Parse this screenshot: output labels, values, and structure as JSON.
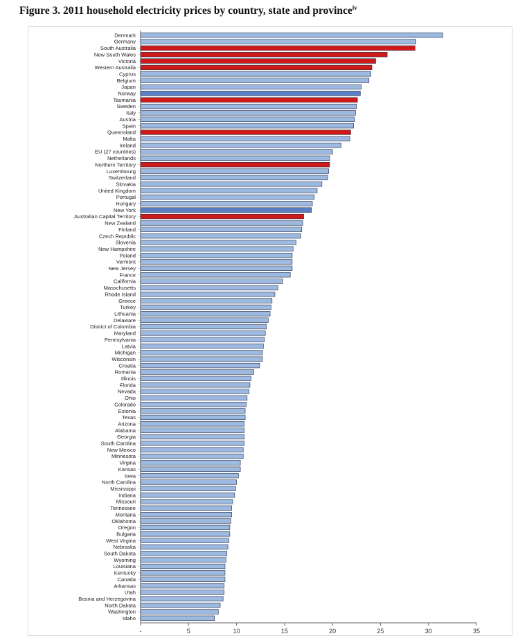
{
  "title": {
    "main": "Figure 3. 2011 household electricity prices by country, state and province",
    "footnote": "iv"
  },
  "colors": {
    "default_bar": "#9db9e0",
    "highlight_bar": "#d01919",
    "dark_bar": "#5b7fc4",
    "bar_outline": "#1e2a44"
  },
  "chart_data": {
    "type": "bar",
    "orientation": "horizontal",
    "title": "2011 household electricity prices by country, state and province",
    "xlabel": "",
    "ylabel": "",
    "xlim": [
      0,
      35
    ],
    "xticks": [
      0,
      5,
      10,
      15,
      20,
      25,
      30,
      35
    ],
    "xtick_labels": [
      "-",
      "5",
      "10",
      "15",
      "20",
      "25",
      "30",
      "35"
    ],
    "grid": false,
    "legend": "none",
    "categories": [
      "Denmark",
      "Germany",
      "South Australia",
      "New South Wales",
      "Victoria",
      "Western Australia",
      "Cyprus",
      "Belgium",
      "Japan",
      "Norway",
      "Tasmania",
      "Sweden",
      "Italy",
      "Austria",
      "Spain",
      "Queensland",
      "Malta",
      "Ireland",
      "EU (27 countries)",
      "Netherlands",
      "Northern Territory",
      "Luxembourg",
      "Switzerland",
      "Slovakia",
      "United Kingdom",
      "Portugal",
      "Hungary",
      "New York",
      "Australian Capital Territory",
      "New Zealand",
      "Finland",
      "Czech Republic",
      "Slovenia",
      "New Hampshire",
      "Poland",
      "Vermont",
      "New Jersey",
      "France",
      "California",
      "Masschusetts",
      "Rhode Island",
      "Greece",
      "Turkey",
      "Lithuania",
      "Delaware",
      "District of Colombia",
      "Maryland",
      "Pennsylvania",
      "Latvia",
      "Michigan",
      "Wisconsin",
      "Croatia",
      "Romania",
      "Illinois",
      "Florida",
      "Nevada",
      "Ohio",
      "Colorado",
      "Estonia",
      "Texas",
      "Arizona",
      "Alabama",
      "Georgia",
      "South Carolina",
      "New Mexico",
      "Minnesota",
      "Virgina",
      "Kansas",
      "Iowa",
      "North Carolina",
      "Mississippi",
      "Indiana",
      "Missouri",
      "Tennessee",
      "Montana",
      "Oklahoma",
      "Oregon",
      "Bulgaria",
      "West Virgina",
      "Nebraska",
      "South Dakota",
      "Wyoming",
      "Louisiana",
      "Kentucky",
      "Canada",
      "Arkansas",
      "Utah",
      "Bosnia and Herzegovina",
      "North Dakota",
      "Washington",
      "Idaho"
    ],
    "values": [
      31.5,
      28.7,
      28.6,
      25.7,
      24.5,
      24.1,
      24.0,
      23.8,
      23.0,
      22.9,
      22.6,
      22.5,
      22.4,
      22.3,
      22.2,
      21.9,
      21.8,
      20.9,
      20.0,
      19.7,
      19.7,
      19.6,
      19.5,
      18.9,
      18.4,
      18.1,
      17.9,
      17.8,
      17.0,
      16.9,
      16.8,
      16.7,
      16.2,
      15.9,
      15.8,
      15.8,
      15.8,
      15.6,
      14.8,
      14.3,
      14.0,
      13.7,
      13.6,
      13.5,
      13.3,
      13.1,
      13.0,
      12.9,
      12.8,
      12.7,
      12.7,
      12.4,
      11.8,
      11.5,
      11.4,
      11.3,
      11.1,
      11.0,
      10.9,
      10.9,
      10.8,
      10.8,
      10.8,
      10.8,
      10.7,
      10.7,
      10.4,
      10.4,
      10.2,
      10.0,
      9.9,
      9.8,
      9.6,
      9.5,
      9.5,
      9.4,
      9.3,
      9.3,
      9.2,
      9.1,
      9.0,
      8.9,
      8.8,
      8.8,
      8.8,
      8.7,
      8.7,
      8.6,
      8.3,
      8.1,
      7.7
    ],
    "highlighted": [
      "South Australia",
      "New South Wales",
      "Victoria",
      "Western Australia",
      "Tasmania",
      "Queensland",
      "Northern Territory",
      "Australian Capital Territory"
    ],
    "dark": [
      "Norway",
      "New York"
    ]
  }
}
